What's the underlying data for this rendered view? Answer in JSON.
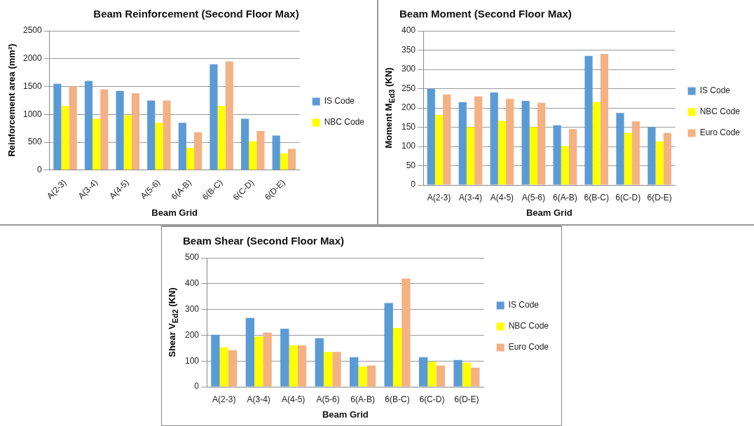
{
  "chart_data": [
    {
      "type": "bar",
      "title": "Beam Reinforcement (Second Floor Max)",
      "xlabel": "Beam Grid",
      "ylabel": "Reinforcement area (mm²)",
      "categories": [
        "A(2-3)",
        "A(3-4)",
        "A(4-5)",
        "A(5-6)",
        "6(A-B)",
        "6(B-C)",
        "6(C-D)",
        "6(D-E)"
      ],
      "series": [
        {
          "name": "IS Code",
          "color": "#5b9bd5",
          "values": [
            1550,
            1600,
            1420,
            1250,
            850,
            1900,
            920,
            620
          ]
        },
        {
          "name": "NBC Code",
          "color": "#ffff00",
          "values": [
            1150,
            920,
            980,
            850,
            400,
            1150,
            520,
            300
          ]
        },
        {
          "color": "#f4b183",
          "values": [
            1500,
            1450,
            1380,
            1250,
            680,
            1950,
            700,
            380
          ]
        }
      ],
      "ylim": [
        0,
        2500
      ],
      "yticks": [
        0,
        500,
        1000,
        1500,
        2000,
        2500
      ],
      "grid": "y",
      "legend": "right"
    },
    {
      "type": "bar",
      "title": "Beam Moment (Second Floor Max)",
      "xlabel": "Beam Grid",
      "ylabel": "Moment M$_{Ed3}$ (KN)",
      "categories": [
        "A(2-3)",
        "A(3-4)",
        "A(4-5)",
        "A(5-6)",
        "6(A-B)",
        "6(B-C)",
        "6(C-D)",
        "6(D-E)"
      ],
      "series": [
        {
          "name": "IS Code",
          "color": "#5b9bd5",
          "values": [
            250,
            215,
            240,
            218,
            155,
            335,
            187,
            150
          ]
        },
        {
          "name": "NBC Code",
          "color": "#ffff00",
          "values": [
            182,
            150,
            167,
            150,
            101,
            215,
            135,
            113
          ]
        },
        {
          "name": "Euro Code",
          "color": "#f4b183",
          "values": [
            235,
            230,
            223,
            213,
            145,
            340,
            165,
            135
          ]
        }
      ],
      "ylim": [
        0,
        400
      ],
      "yticks": [
        0,
        50,
        100,
        150,
        200,
        250,
        300,
        350,
        400
      ],
      "grid": "y",
      "legend": "right"
    },
    {
      "type": "bar",
      "title": "Beam Shear (Second Floor Max)",
      "xlabel": "Beam Grid",
      "ylabel": "Shear V$_{Ed2}$ (KN)",
      "categories": [
        "A(2-3)",
        "A(3-4)",
        "A(4-5)",
        "A(5-6)",
        "6(A-B)",
        "6(B-C)",
        "6(C-D)",
        "6(D-E)"
      ],
      "series": [
        {
          "name": "IS Code",
          "color": "#5b9bd5",
          "values": [
            202,
            267,
            225,
            188,
            115,
            325,
            115,
            104
          ]
        },
        {
          "name": "NBC Code",
          "color": "#ffff00",
          "values": [
            153,
            195,
            160,
            135,
            78,
            228,
            97,
            93
          ]
        },
        {
          "name": "Euro Code",
          "color": "#f4b183",
          "values": [
            142,
            210,
            160,
            135,
            82,
            420,
            82,
            74
          ]
        }
      ],
      "ylim": [
        0,
        500
      ],
      "yticks": [
        0,
        100,
        200,
        300,
        400,
        500
      ],
      "grid": "y",
      "legend": "right"
    }
  ]
}
